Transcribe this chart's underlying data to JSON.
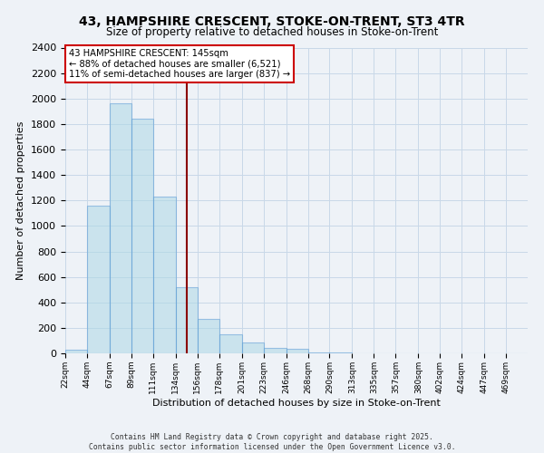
{
  "title": "43, HAMPSHIRE CRESCENT, STOKE-ON-TRENT, ST3 4TR",
  "subtitle": "Size of property relative to detached houses in Stoke-on-Trent",
  "xlabel": "Distribution of detached houses by size in Stoke-on-Trent",
  "ylabel": "Number of detached properties",
  "bin_labels": [
    "22sqm",
    "44sqm",
    "67sqm",
    "89sqm",
    "111sqm",
    "134sqm",
    "156sqm",
    "178sqm",
    "201sqm",
    "223sqm",
    "246sqm",
    "268sqm",
    "290sqm",
    "313sqm",
    "335sqm",
    "357sqm",
    "380sqm",
    "402sqm",
    "424sqm",
    "447sqm",
    "469sqm"
  ],
  "bin_edges": [
    22,
    44,
    67,
    89,
    111,
    134,
    156,
    178,
    201,
    223,
    246,
    268,
    290,
    313,
    335,
    357,
    380,
    402,
    424,
    447,
    469,
    491
  ],
  "bar_heights": [
    25,
    1160,
    1960,
    1840,
    1230,
    520,
    270,
    150,
    85,
    40,
    35,
    10,
    5,
    2,
    1,
    1,
    0,
    0,
    0,
    0,
    0
  ],
  "bar_color": "#add8e6",
  "bar_edge_color": "#5b9bd5",
  "bar_fill_alpha": 0.55,
  "grid_color": "#c8d8e8",
  "background_color": "#eef2f7",
  "vline_x": 145,
  "vline_color": "#8b0000",
  "annotation_text": "43 HAMPSHIRE CRESCENT: 145sqm\n← 88% of detached houses are smaller (6,521)\n11% of semi-detached houses are larger (837) →",
  "annotation_box_color": "#ffffff",
  "annotation_box_edge": "#cc0000",
  "ylim": [
    0,
    2400
  ],
  "yticks": [
    0,
    200,
    400,
    600,
    800,
    1000,
    1200,
    1400,
    1600,
    1800,
    2000,
    2200,
    2400
  ],
  "footer_line1": "Contains HM Land Registry data © Crown copyright and database right 2025.",
  "footer_line2": "Contains public sector information licensed under the Open Government Licence v3.0."
}
